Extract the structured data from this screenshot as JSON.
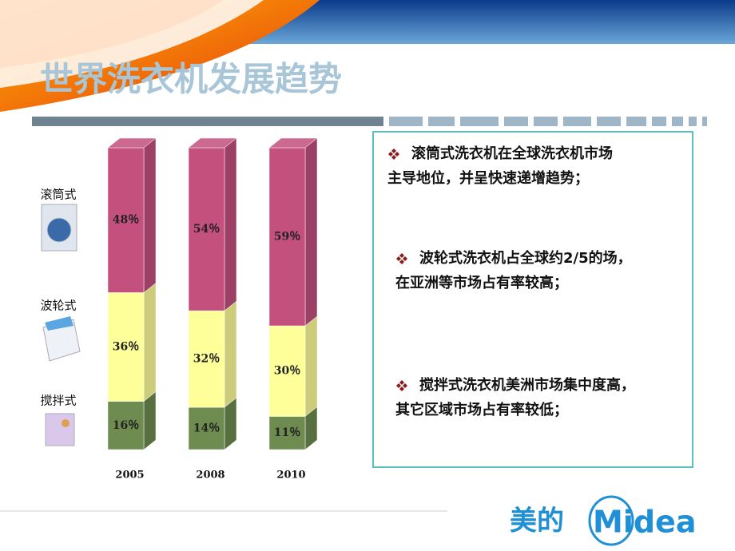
{
  "chart_data": {
    "type": "stacked_bar_3d",
    "title": "世界洗衣机发展趋势",
    "categories": [
      "2005",
      "2008",
      "2010"
    ],
    "series": [
      {
        "name": "搅拌式",
        "color": "#6e8c50",
        "values": [
          16,
          14,
          11
        ],
        "value_labels": [
          "16％",
          "14％",
          "11％"
        ]
      },
      {
        "name": "波轮式",
        "color": "#ffff99",
        "values": [
          36,
          32,
          30
        ],
        "value_labels": [
          "36％",
          "32％",
          "30％"
        ]
      },
      {
        "name": "滚筒式",
        "color": "#c4507e",
        "values": [
          48,
          54,
          59
        ],
        "value_labels": [
          "48％",
          "54％",
          "59％"
        ]
      }
    ],
    "annotations": [
      [
        "滚筒式洗衣机在全球洗衣机市场",
        "主导地位，并呈快速递增趋势；"
      ],
      [
        "波轮式洗衣机占全球约2/5的场，",
        "在亚洲等市场占有率较高；"
      ],
      [
        "搅拌式洗衣机美洲市场集中度高，",
        "其它区域市场占有率较低；"
      ]
    ]
  },
  "logo": {
    "cn": "美的",
    "en": "Midea"
  }
}
